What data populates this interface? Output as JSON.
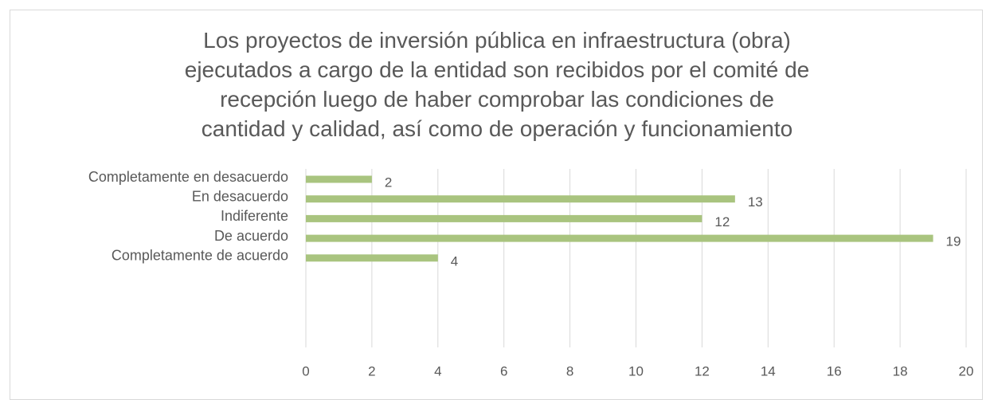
{
  "chart_data": {
    "type": "bar",
    "orientation": "horizontal",
    "title": "Los proyectos de inversión pública en infraestructura (obra) ejecutados a cargo de la entidad son recibidos por el comité de recepción luego de haber comprobar las condiciones de cantidad y calidad, así como de operación y funcionamiento",
    "categories": [
      "Completamente en desacuerdo",
      "En desacuerdo",
      "Indiferente",
      "De acuerdo",
      "Completamente de acuerdo"
    ],
    "values": [
      2,
      13,
      12,
      19,
      4
    ],
    "color": "#a9c47f",
    "xlim": [
      0,
      20
    ],
    "xticks": [
      0,
      2,
      4,
      6,
      8,
      10,
      12,
      14,
      16,
      18,
      20
    ],
    "grid": true
  }
}
